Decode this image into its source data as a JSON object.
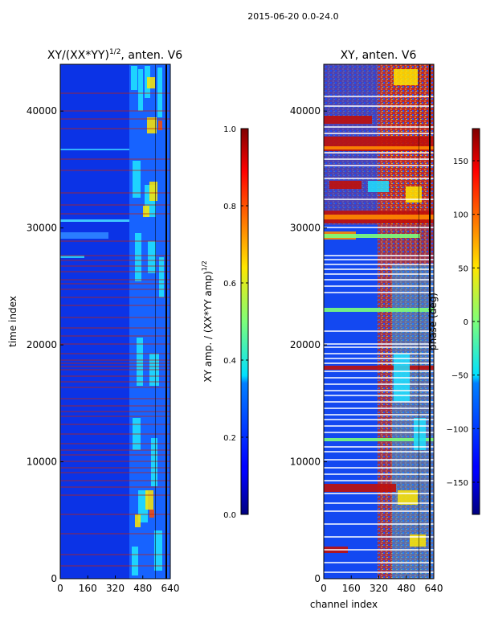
{
  "figure": {
    "suptitle": "2015-06-20 0.0-24.0"
  },
  "chart_data": [
    {
      "type": "heatmap",
      "title": "XY/(XX*YY)",
      "title_exponent": "1/2",
      "title_suffix": ", anten. V6",
      "xlabel": "",
      "ylabel": "time index",
      "xlim": [
        0,
        640
      ],
      "ylim": [
        0,
        44000
      ],
      "xticks": [
        0,
        160,
        320,
        480,
        640
      ],
      "yticks": [
        0,
        10000,
        20000,
        30000,
        40000
      ],
      "colormap": "jet",
      "colorbar": {
        "label": "XY amp. / (XX*YY amp)",
        "label_exponent": "1/2",
        "range": [
          0.0,
          1.0
        ],
        "ticks": [
          0.0,
          0.2,
          0.4,
          0.6,
          0.8,
          1.0
        ],
        "tick_labels": [
          "0.0",
          "0.2",
          "0.4",
          "0.6",
          "0.8",
          "1.0"
        ]
      }
    },
    {
      "type": "heatmap",
      "title": "XY, anten. V6",
      "xlabel": "channel index",
      "ylabel": "",
      "xlim": [
        0,
        640
      ],
      "ylim": [
        0,
        44000
      ],
      "xticks": [
        0,
        160,
        320,
        480,
        640
      ],
      "yticks": [
        0,
        10000,
        20000,
        30000,
        40000
      ],
      "colormap": "jet",
      "colorbar": {
        "label": "phase (deg)",
        "range": [
          -180,
          180
        ],
        "ticks": [
          -150,
          -100,
          -50,
          0,
          50,
          100,
          150
        ],
        "tick_labels": [
          "−150",
          "−100",
          "−50",
          "0",
          "50",
          "100",
          "150"
        ]
      }
    }
  ]
}
